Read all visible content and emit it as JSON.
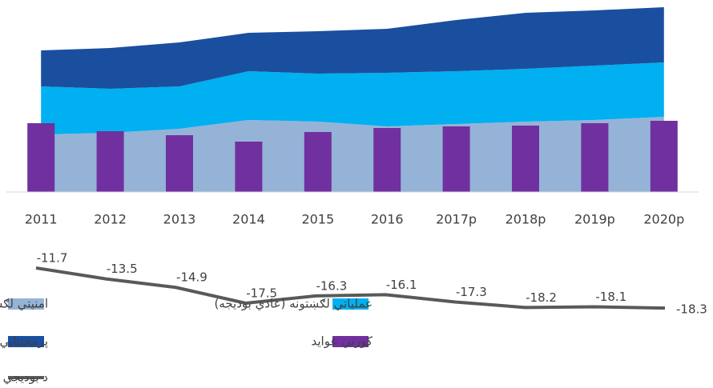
{
  "chart_data": {
    "type": "combo",
    "categories": [
      "2011",
      "2012",
      "2013",
      "2014",
      "2015",
      "2016",
      "2017p",
      "2018p",
      "2019p",
      "2020p"
    ],
    "ylim": [
      0,
      230
    ],
    "y2lim": [
      -20,
      -10
    ],
    "series": [
      {
        "name": "امنيتي لګښتونه (عادي بوديجه)",
        "type": "area",
        "color": "#95b3d7",
        "values": [
          72,
          74,
          79,
          90,
          88,
          82,
          85,
          88,
          90,
          94
        ]
      },
      {
        "name": "عملياتي لګښتونه (عادي بوديجه)",
        "type": "area",
        "color": "#00b0f0",
        "values": [
          60,
          55,
          53,
          61,
          60,
          67,
          66,
          66,
          68,
          68
        ]
      },
      {
        "name": "پرمختيايي لګښتونه",
        "type": "area",
        "color": "#1a4fa0",
        "values": [
          45,
          51,
          55,
          48,
          53,
          55,
          64,
          70,
          69,
          69
        ]
      },
      {
        "name": "کورني عوايد",
        "type": "bar",
        "color": "#7030a0",
        "values": [
          86,
          76,
          71,
          63,
          75,
          80,
          82,
          83,
          86,
          89
        ]
      },
      {
        "name": "د بوديجي کسر (د بلاعوضه مرستو نه پرته)",
        "type": "line",
        "axis": "y2",
        "color": "#595959",
        "values": [
          -11.7,
          -13.5,
          -14.9,
          -17.5,
          -16.3,
          -16.1,
          -17.3,
          -18.2,
          -18.1,
          -18.3
        ]
      }
    ]
  }
}
